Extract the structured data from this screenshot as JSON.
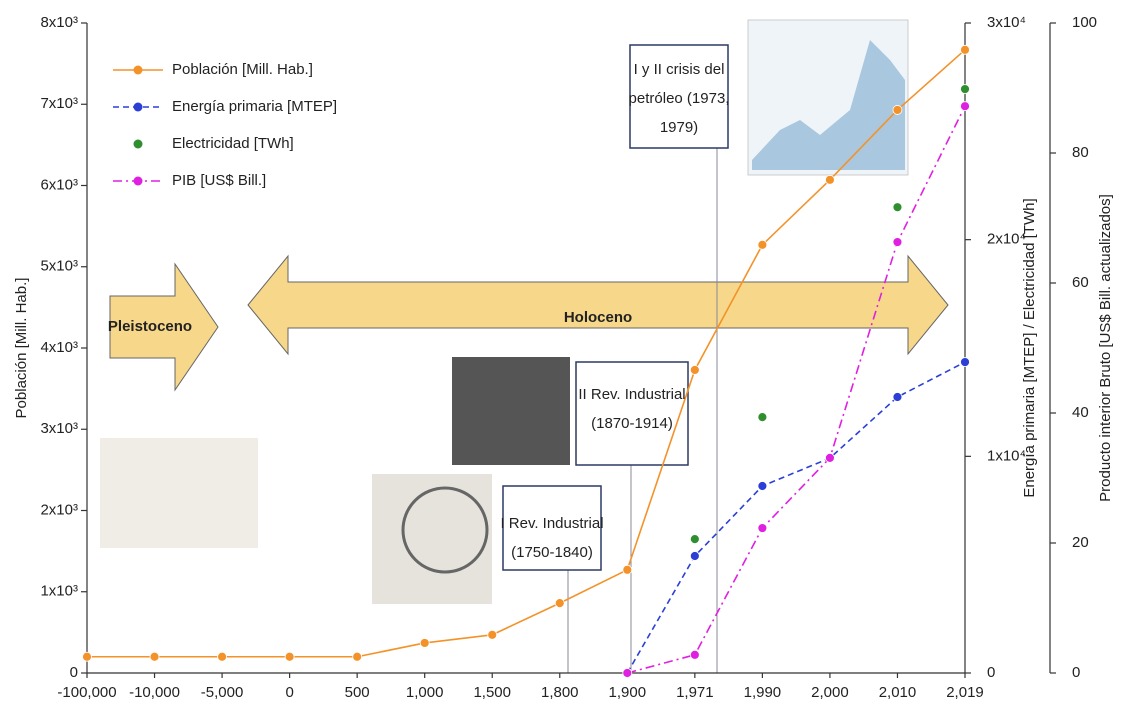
{
  "chart_data": {
    "type": "line",
    "categories": [
      "-100,000",
      "-10,000",
      "-5,000",
      "0",
      "500",
      "1,000",
      "1,500",
      "1,800",
      "1,900",
      "1,971",
      "1,990",
      "2,000",
      "2,010",
      "2,019"
    ],
    "ylabel": "Población [Mill. Hab.]",
    "y2label": "Energía primaria [MTEP] / Electricidad [TWh]",
    "y3label": "Producto interior Bruto [US$ Bill. actualizados]",
    "ylim": [
      0,
      8000
    ],
    "yticks": [
      0,
      {
        "value": 1000,
        "label": "1x10³"
      },
      {
        "value": 2000,
        "label": "2x10³"
      },
      {
        "value": 3000,
        "label": "3x10³"
      },
      {
        "value": 4000,
        "label": "4x10³"
      },
      {
        "value": 5000,
        "label": "5x10³"
      },
      {
        "value": 6000,
        "label": "6x10³"
      },
      {
        "value": 7000,
        "label": "7x10³"
      },
      {
        "value": 8000,
        "label": "8x10³"
      }
    ],
    "y2lim": [
      0,
      30000
    ],
    "y2ticks": [
      0,
      {
        "value": 10000,
        "label": "1x10⁴"
      },
      {
        "value": 20000,
        "label": "2x10⁴"
      },
      {
        "value": 30000,
        "label": "3x10⁴"
      }
    ],
    "y3lim": [
      0,
      100
    ],
    "y3ticks": [
      0,
      20,
      40,
      60,
      80,
      100
    ],
    "series": [
      {
        "name": "Población [Mill. Hab.]",
        "color": "#f4922a",
        "line_style": "solid",
        "values": [
          200,
          200,
          200,
          200,
          200,
          370,
          470,
          860,
          1270,
          3730,
          5270,
          6070,
          6930,
          7670
        ]
      },
      {
        "name": "Energía primaria [MTEP]",
        "color": "#2b3fd6",
        "line_style": "dash",
        "axis": "y2",
        "values": [
          null,
          null,
          null,
          null,
          null,
          null,
          null,
          null,
          0,
          5400,
          8630,
          9920,
          12740,
          14350
        ]
      },
      {
        "name": "Electricidad [TWh]",
        "color": "#2f8f2f",
        "line_style": "none",
        "axis": "y2",
        "values": [
          null,
          null,
          null,
          null,
          null,
          null,
          null,
          null,
          null,
          6180,
          11810,
          null,
          21500,
          26950
        ]
      },
      {
        "name": "PIB [US$ Bill.]",
        "color": "#e020e0",
        "line_style": "dashdot",
        "axis": "y3",
        "values": [
          null,
          null,
          null,
          null,
          null,
          null,
          null,
          null,
          0,
          2.8,
          22.3,
          33.1,
          66.3,
          87.2
        ]
      }
    ],
    "annotations": [
      {
        "lines": [
          "Pleistoceno"
        ]
      },
      {
        "lines": [
          "Holoceno"
        ]
      },
      {
        "lines": [
          "I Rev. Industrial",
          "(1750-1840)"
        ]
      },
      {
        "lines": [
          "II Rev. Industrial",
          "(1870-1914)"
        ]
      },
      {
        "lines": [
          "I y II crisis del",
          "petróleo (1973,",
          "1979)"
        ]
      }
    ]
  }
}
